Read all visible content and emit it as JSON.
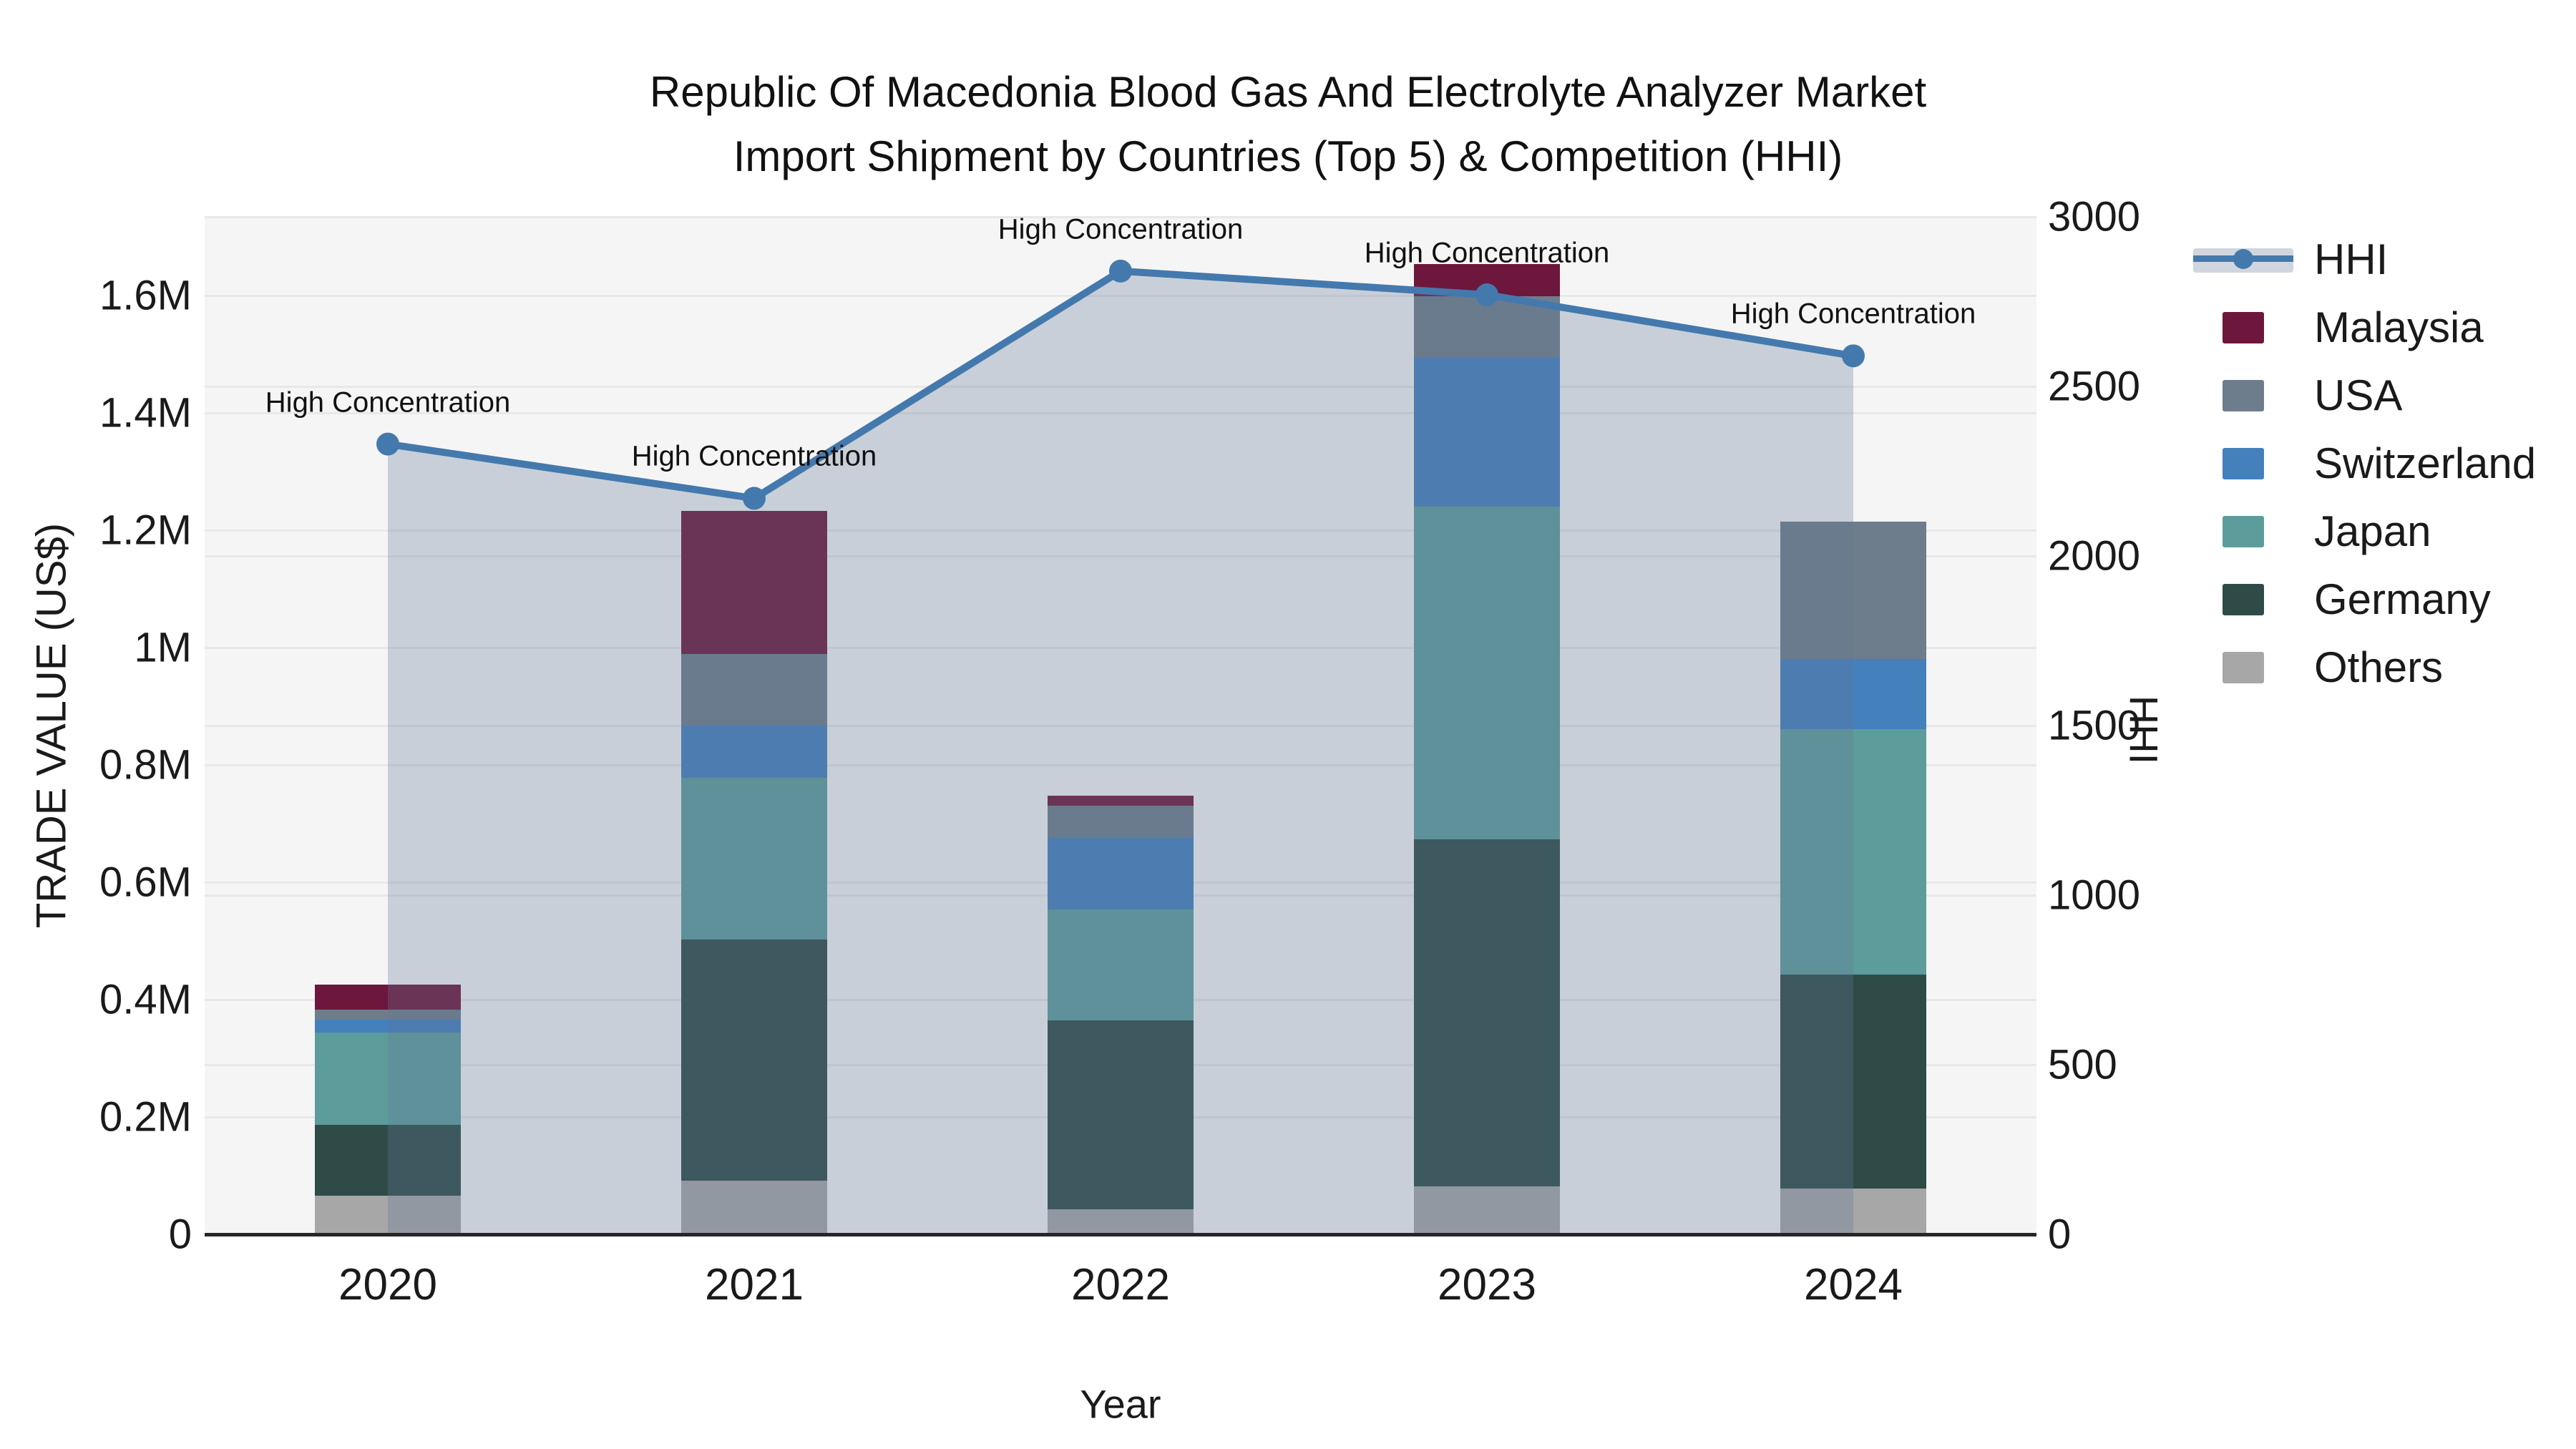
{
  "chart_data": {
    "type": "bar",
    "stacked": true,
    "title_line1": "Republic Of Macedonia Blood Gas And Electrolyte Analyzer Market",
    "title_line2": "Import Shipment by Countries (Top 5) & Competition (HHI)",
    "xlabel": "Year",
    "ylabel_left": "TRADE VALUE (US$)",
    "ylabel_right": "HHI",
    "categories": [
      "2020",
      "2021",
      "2022",
      "2023",
      "2024"
    ],
    "series": [
      {
        "name": "Others",
        "color": "#a6a7a6",
        "values": [
          66000,
          91000,
          43000,
          82000,
          78000
        ]
      },
      {
        "name": "Germany",
        "color": "#2e4b48",
        "values": [
          121000,
          411000,
          322000,
          591000,
          365000
        ]
      },
      {
        "name": "Japan",
        "color": "#5c9c9b",
        "values": [
          157000,
          276000,
          189000,
          567000,
          418000
        ]
      },
      {
        "name": "Switzerland",
        "color": "#4480bc",
        "values": [
          22000,
          89000,
          121000,
          254000,
          120000
        ]
      },
      {
        "name": "USA",
        "color": "#6e7d8c",
        "values": [
          17000,
          122000,
          55000,
          105000,
          234000
        ]
      },
      {
        "name": "Malaysia",
        "color": "#6d173d",
        "values": [
          43000,
          244000,
          18000,
          54000,
          0
        ]
      }
    ],
    "line": {
      "name": "HHI",
      "color": "#4479ad",
      "area_color": "rgba(100,120,150,0.30)",
      "values": [
        2330,
        2170,
        2840,
        2770,
        2590
      ],
      "annotations": [
        "High Concentration",
        "High Concentration",
        "High Concentration",
        "High Concentration",
        "High Concentration"
      ]
    },
    "axes": {
      "left_ticks": [
        {
          "label": "0",
          "value": 0
        },
        {
          "label": "0.2M",
          "value": 200000
        },
        {
          "label": "0.4M",
          "value": 400000
        },
        {
          "label": "0.6M",
          "value": 600000
        },
        {
          "label": "0.8M",
          "value": 800000
        },
        {
          "label": "1M",
          "value": 1000000
        },
        {
          "label": "1.2M",
          "value": 1200000
        },
        {
          "label": "1.4M",
          "value": 1400000
        },
        {
          "label": "1.6M",
          "value": 1600000
        }
      ],
      "right_ticks": [
        {
          "label": "0",
          "value": 0
        },
        {
          "label": "500",
          "value": 500
        },
        {
          "label": "1000",
          "value": 1000
        },
        {
          "label": "1500",
          "value": 1500
        },
        {
          "label": "2000",
          "value": 2000
        },
        {
          "label": "2500",
          "value": 2500
        },
        {
          "label": "3000",
          "value": 3000
        }
      ],
      "left_max": 1734000,
      "right_max": 3000,
      "grid": true
    },
    "legend_order": [
      "HHI",
      "Malaysia",
      "USA",
      "Switzerland",
      "Japan",
      "Germany",
      "Others"
    ],
    "colors": {
      "background": "#ffffff",
      "plot_background": "#f5f5f5",
      "gridline": "#e8e8e8",
      "axis_line": "#262626",
      "text": "#1a1a1a"
    }
  }
}
